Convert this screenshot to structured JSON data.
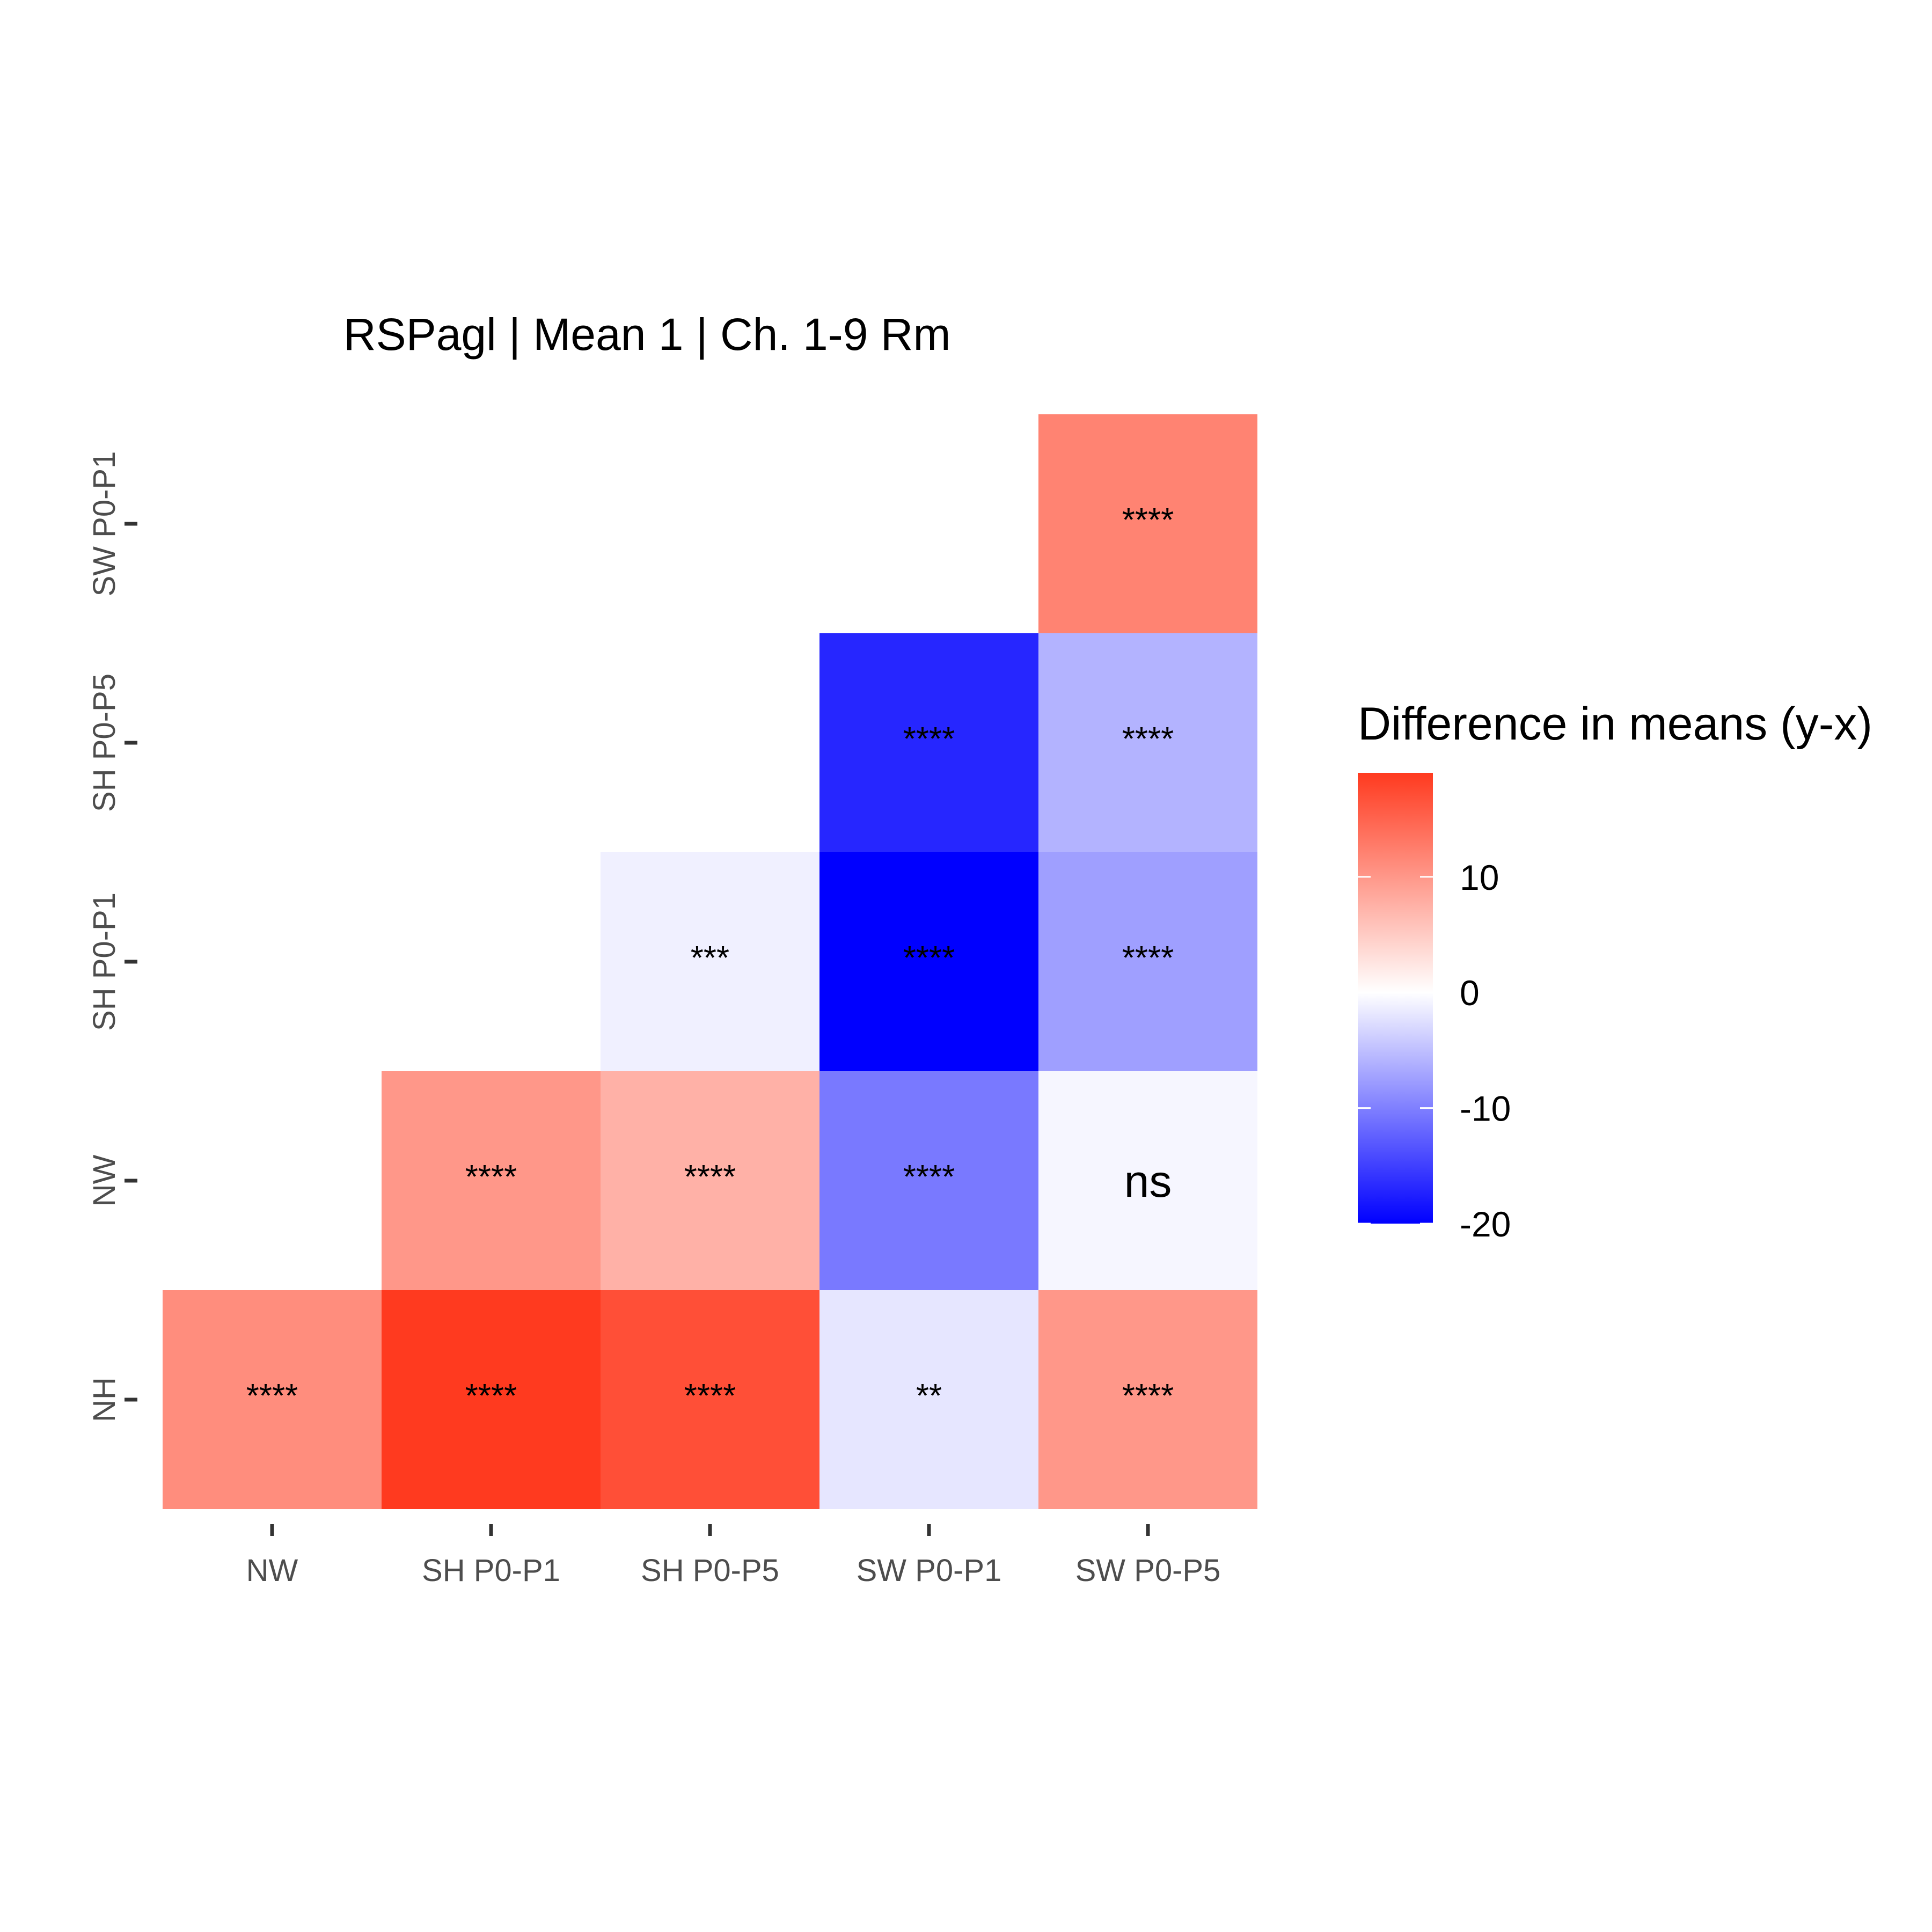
{
  "chart_data": {
    "type": "heatmap",
    "title": "RSPagl | Mean 1 | Ch. 1-9 Rm",
    "x_categories": [
      "NW",
      "SH P0-P1",
      "SH P0-P5",
      "SW P0-P1",
      "SW P0-P5"
    ],
    "y_categories": [
      "NH",
      "NW",
      "SH P0-P1",
      "SH P0-P5",
      "SW P0-P1"
    ],
    "cells": [
      {
        "x": "NW",
        "y": "NH",
        "value": 11,
        "label": "****"
      },
      {
        "x": "SH P0-P1",
        "y": "NH",
        "value": 19,
        "label": "****"
      },
      {
        "x": "SH P0-P5",
        "y": "NH",
        "value": 17,
        "label": "****"
      },
      {
        "x": "SW P0-P1",
        "y": "NH",
        "value": -2,
        "label": "**"
      },
      {
        "x": "SW P0-P5",
        "y": "NH",
        "value": 10,
        "label": "****"
      },
      {
        "x": "SH P0-P1",
        "y": "NW",
        "value": 10,
        "label": "****"
      },
      {
        "x": "SH P0-P5",
        "y": "NW",
        "value": 7.5,
        "label": "****"
      },
      {
        "x": "SW P0-P1",
        "y": "NW",
        "value": -10.5,
        "label": "****"
      },
      {
        "x": "SW P0-P5",
        "y": "NW",
        "value": -0.7,
        "label": "ns"
      },
      {
        "x": "SH P0-P5",
        "y": "SH P0-P1",
        "value": -1.2,
        "label": "***"
      },
      {
        "x": "SW P0-P1",
        "y": "SH P0-P1",
        "value": -20,
        "label": "****"
      },
      {
        "x": "SW P0-P5",
        "y": "SH P0-P1",
        "value": -7.5,
        "label": "****"
      },
      {
        "x": "SW P0-P1",
        "y": "SH P0-P5",
        "value": -17,
        "label": "****"
      },
      {
        "x": "SW P0-P5",
        "y": "SH P0-P5",
        "value": -6,
        "label": "****"
      },
      {
        "x": "SW P0-P5",
        "y": "SW P0-P1",
        "value": 12,
        "label": "****"
      }
    ],
    "legend": {
      "title": "Difference in means (y-x)",
      "ticks": [
        10,
        0,
        -10,
        -20
      ],
      "tick_labels": [
        "10",
        "0",
        "-10",
        "-20"
      ],
      "range": [
        -20,
        19
      ],
      "low_color": "#0000ff",
      "mid_color": "#ffffff",
      "high_color": "#ff3a1f",
      "placement": "right"
    },
    "grid": false
  }
}
